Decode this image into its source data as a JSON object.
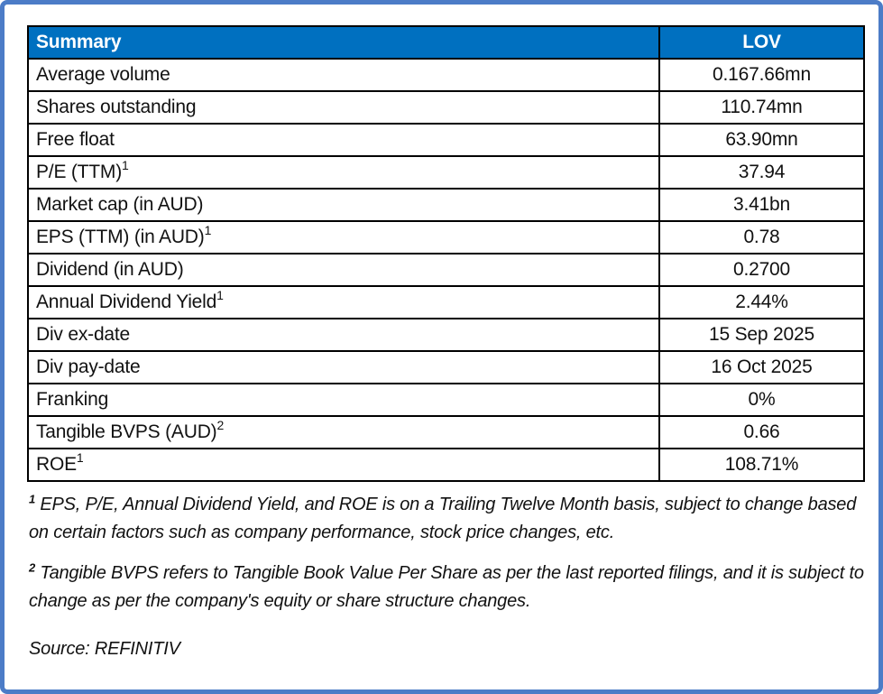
{
  "colors": {
    "frame_border": "#4C7CC7",
    "header_bg": "#0070C0",
    "header_text": "#FFFFFF",
    "cell_border": "#000000"
  },
  "table": {
    "header": {
      "label": "Summary",
      "value_col": "LOV"
    },
    "rows": [
      {
        "label": "Average volume",
        "sup": "",
        "value": "0.167.66mn"
      },
      {
        "label": "Shares outstanding",
        "sup": "",
        "value": "110.74mn"
      },
      {
        "label": "Free float",
        "sup": "",
        "value": "63.90mn"
      },
      {
        "label": "P/E (TTM)",
        "sup": "1",
        "value": "37.94"
      },
      {
        "label": "Market cap (in AUD)",
        "sup": "",
        "value": "3.41bn"
      },
      {
        "label": "EPS (TTM) (in AUD)",
        "sup": "1",
        "value": "0.78"
      },
      {
        "label": "Dividend (in AUD)",
        "sup": "",
        "value": "0.2700"
      },
      {
        "label": "Annual Dividend Yield",
        "sup": "1",
        "value": "2.44%"
      },
      {
        "label": "Div ex-date",
        "sup": "",
        "value": "15 Sep 2025"
      },
      {
        "label": "Div pay-date",
        "sup": "",
        "value": "16 Oct 2025"
      },
      {
        "label": "Franking",
        "sup": "",
        "value": "0%"
      },
      {
        "label": "Tangible BVPS (AUD)",
        "sup": "2",
        "value": "0.66"
      },
      {
        "label": "ROE",
        "sup": "1",
        "value": "108.71%"
      }
    ]
  },
  "footnotes": [
    {
      "sup": "1",
      "text": " EPS, P/E, Annual Dividend Yield, and ROE is on a Trailing Twelve Month basis, subject to change based on certain factors such as company performance, stock price changes, etc."
    },
    {
      "sup": "2",
      "text": " Tangible BVPS refers to Tangible Book Value Per Share as per the last reported filings, and it is subject to change as per the company's equity or share structure changes."
    }
  ],
  "source": "Source: REFINITIV"
}
